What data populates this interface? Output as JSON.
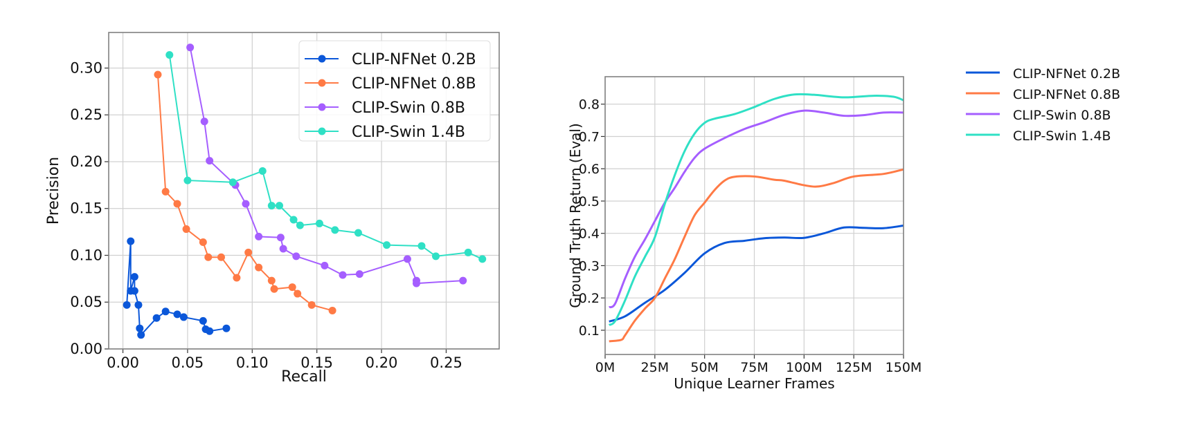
{
  "chart_data": [
    {
      "type": "line",
      "markers": true,
      "xlabel": "Recall",
      "ylabel": "Precision",
      "xlim": [
        -0.011,
        0.291
      ],
      "ylim": [
        0.0,
        0.338
      ],
      "xticks": [
        "0.00",
        "0.05",
        "0.10",
        "0.15",
        "0.20",
        "0.25"
      ],
      "yticks": [
        "0.00",
        "0.05",
        "0.10",
        "0.15",
        "0.20",
        "0.25",
        "0.30"
      ],
      "grid": true,
      "legend_placement": "top-right",
      "series": [
        {
          "name": "CLIP-NFNet 0.2B",
          "color": "#0b57d9",
          "points": [
            [
              0.003,
              0.047
            ],
            [
              0.006,
              0.115
            ],
            [
              0.006,
              0.062
            ],
            [
              0.009,
              0.077
            ],
            [
              0.009,
              0.062
            ],
            [
              0.012,
              0.047
            ],
            [
              0.013,
              0.022
            ],
            [
              0.014,
              0.015
            ],
            [
              0.026,
              0.033
            ],
            [
              0.033,
              0.04
            ],
            [
              0.042,
              0.037
            ],
            [
              0.047,
              0.034
            ],
            [
              0.062,
              0.03
            ],
            [
              0.064,
              0.021
            ],
            [
              0.067,
              0.019
            ],
            [
              0.08,
              0.022
            ]
          ]
        },
        {
          "name": "CLIP-NFNet 0.8B",
          "color": "#ff7a45",
          "points": [
            [
              0.027,
              0.293
            ],
            [
              0.033,
              0.168
            ],
            [
              0.042,
              0.155
            ],
            [
              0.049,
              0.128
            ],
            [
              0.062,
              0.114
            ],
            [
              0.066,
              0.098
            ],
            [
              0.076,
              0.098
            ],
            [
              0.088,
              0.076
            ],
            [
              0.097,
              0.103
            ],
            [
              0.105,
              0.087
            ],
            [
              0.115,
              0.073
            ],
            [
              0.117,
              0.064
            ],
            [
              0.131,
              0.066
            ],
            [
              0.135,
              0.059
            ],
            [
              0.146,
              0.047
            ],
            [
              0.162,
              0.041
            ]
          ]
        },
        {
          "name": "CLIP-Swin 0.8B",
          "color": "#a55eff",
          "points": [
            [
              0.052,
              0.322
            ],
            [
              0.063,
              0.243
            ],
            [
              0.067,
              0.201
            ],
            [
              0.087,
              0.175
            ],
            [
              0.095,
              0.155
            ],
            [
              0.105,
              0.12
            ],
            [
              0.122,
              0.119
            ],
            [
              0.124,
              0.107
            ],
            [
              0.134,
              0.099
            ],
            [
              0.156,
              0.089
            ],
            [
              0.17,
              0.079
            ],
            [
              0.183,
              0.08
            ],
            [
              0.22,
              0.096
            ],
            [
              0.227,
              0.073
            ],
            [
              0.227,
              0.07
            ],
            [
              0.263,
              0.073
            ]
          ]
        },
        {
          "name": "CLIP-Swin 1.4B",
          "color": "#2fe0c5",
          "points": [
            [
              0.036,
              0.314
            ],
            [
              0.05,
              0.18
            ],
            [
              0.085,
              0.178
            ],
            [
              0.108,
              0.19
            ],
            [
              0.115,
              0.153
            ],
            [
              0.121,
              0.153
            ],
            [
              0.132,
              0.138
            ],
            [
              0.137,
              0.132
            ],
            [
              0.152,
              0.134
            ],
            [
              0.164,
              0.127
            ],
            [
              0.182,
              0.124
            ],
            [
              0.204,
              0.111
            ],
            [
              0.231,
              0.11
            ],
            [
              0.242,
              0.099
            ],
            [
              0.267,
              0.103
            ],
            [
              0.278,
              0.096
            ]
          ]
        }
      ]
    },
    {
      "type": "line",
      "markers": false,
      "xlabel": "Unique Learner Frames",
      "ylabel": "Ground Truth Return (Eval)",
      "xlim": [
        0,
        150
      ],
      "ylim": [
        0.025,
        0.885
      ],
      "xticks": [
        "0M",
        "25M",
        "50M",
        "75M",
        "100M",
        "125M",
        "150M"
      ],
      "yticks": [
        "0.1",
        "0.2",
        "0.3",
        "0.4",
        "0.5",
        "0.6",
        "0.7",
        "0.8"
      ],
      "grid": true,
      "legend_placement": "outside-right",
      "series": [
        {
          "name": "CLIP-NFNet 0.2B",
          "color": "#0b57d9",
          "points": [
            [
              2,
              0.127
            ],
            [
              10,
              0.143
            ],
            [
              20,
              0.185
            ],
            [
              30,
              0.225
            ],
            [
              40,
              0.278
            ],
            [
              50,
              0.338
            ],
            [
              60,
              0.37
            ],
            [
              70,
              0.377
            ],
            [
              80,
              0.385
            ],
            [
              90,
              0.387
            ],
            [
              100,
              0.386
            ],
            [
              110,
              0.4
            ],
            [
              120,
              0.418
            ],
            [
              130,
              0.417
            ],
            [
              140,
              0.416
            ],
            [
              150,
              0.424
            ]
          ]
        },
        {
          "name": "CLIP-NFNet 0.8B",
          "color": "#ff7a45",
          "points": [
            [
              2,
              0.066
            ],
            [
              8,
              0.07
            ],
            [
              10,
              0.084
            ],
            [
              15,
              0.13
            ],
            [
              20,
              0.167
            ],
            [
              25,
              0.2
            ],
            [
              30,
              0.26
            ],
            [
              35,
              0.32
            ],
            [
              40,
              0.39
            ],
            [
              45,
              0.456
            ],
            [
              50,
              0.495
            ],
            [
              55,
              0.534
            ],
            [
              60,
              0.563
            ],
            [
              65,
              0.575
            ],
            [
              75,
              0.576
            ],
            [
              85,
              0.566
            ],
            [
              90,
              0.563
            ],
            [
              100,
              0.549
            ],
            [
              107,
              0.545
            ],
            [
              115,
              0.556
            ],
            [
              125,
              0.576
            ],
            [
              140,
              0.584
            ],
            [
              150,
              0.598
            ]
          ]
        },
        {
          "name": "CLIP-Swin 0.8B",
          "color": "#a55eff",
          "points": [
            [
              2,
              0.171
            ],
            [
              5,
              0.182
            ],
            [
              10,
              0.26
            ],
            [
              15,
              0.328
            ],
            [
              20,
              0.381
            ],
            [
              25,
              0.438
            ],
            [
              30,
              0.495
            ],
            [
              35,
              0.541
            ],
            [
              40,
              0.591
            ],
            [
              45,
              0.634
            ],
            [
              50,
              0.662
            ],
            [
              60,
              0.695
            ],
            [
              70,
              0.723
            ],
            [
              80,
              0.744
            ],
            [
              90,
              0.767
            ],
            [
              100,
              0.78
            ],
            [
              110,
              0.774
            ],
            [
              120,
              0.764
            ],
            [
              130,
              0.766
            ],
            [
              140,
              0.774
            ],
            [
              150,
              0.774
            ]
          ]
        },
        {
          "name": "CLIP-Swin 1.4B",
          "color": "#2fe0c5",
          "points": [
            [
              2,
              0.116
            ],
            [
              5,
              0.128
            ],
            [
              10,
              0.192
            ],
            [
              15,
              0.267
            ],
            [
              20,
              0.327
            ],
            [
              25,
              0.388
            ],
            [
              30,
              0.491
            ],
            [
              35,
              0.58
            ],
            [
              40,
              0.655
            ],
            [
              45,
              0.709
            ],
            [
              50,
              0.742
            ],
            [
              55,
              0.755
            ],
            [
              65,
              0.769
            ],
            [
              75,
              0.791
            ],
            [
              85,
              0.816
            ],
            [
              95,
              0.83
            ],
            [
              105,
              0.829
            ],
            [
              120,
              0.821
            ],
            [
              135,
              0.826
            ],
            [
              145,
              0.823
            ],
            [
              150,
              0.812
            ]
          ]
        }
      ]
    }
  ]
}
